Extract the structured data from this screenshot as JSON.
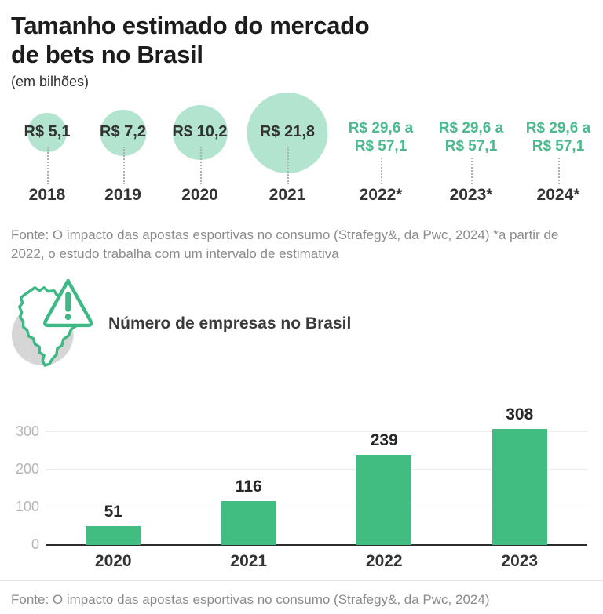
{
  "header": {
    "title_line1": "Tamanho estimado do mercado",
    "title_line2": "de bets no Brasil",
    "subtitle": "(em bilhões)"
  },
  "bubble_chart": {
    "type": "bubble",
    "unit_note": "(em bilhões)",
    "bubble_color": "#b2e4d0",
    "range_text_color": "#4cba8e",
    "items": [
      {
        "year": "2018",
        "label": "R$ 5,1",
        "value": 5.1
      },
      {
        "year": "2019",
        "label": "R$ 7,2",
        "value": 7.2
      },
      {
        "year": "2020",
        "label": "R$ 10,2",
        "value": 10.2
      },
      {
        "year": "2021",
        "label": "R$ 21,8",
        "value": 21.8
      },
      {
        "year": "2022*",
        "label_lines": [
          "R$ 29,6 a",
          "R$ 57,1"
        ],
        "range": [
          29.6,
          57.1
        ]
      },
      {
        "year": "2023*",
        "label_lines": [
          "R$ 29,6 a",
          "R$ 57,1"
        ],
        "range": [
          29.6,
          57.1
        ]
      },
      {
        "year": "2024*",
        "label_lines": [
          "R$ 29,6 a",
          "R$ 57,1"
        ],
        "range": [
          29.6,
          57.1
        ]
      }
    ]
  },
  "source_top": "Fonte: O impacto das apostas esportivas no consumo (Strafegy&, da Pwc, 2024) *a partir de 2022, o estudo trabalha com um intervalo de estimativa",
  "section_companies": {
    "title": "Número de empresas no Brasil",
    "icon": "brazil-map-warning-icon"
  },
  "chart_data": {
    "type": "bar",
    "title": "Número de empresas no Brasil",
    "categories": [
      "2020",
      "2021",
      "2022",
      "2023"
    ],
    "values": [
      51,
      116,
      239,
      308
    ],
    "yticks": [
      0,
      100,
      200,
      300
    ],
    "ylim": [
      0,
      330
    ],
    "grid": true,
    "legend": false,
    "bar_color": "#41bd82",
    "xlabel": "",
    "ylabel": ""
  },
  "source_bottom": "Fonte: O impacto das apostas esportivas no consumo (Strafegy&, da Pwc, 2024)",
  "colors": {
    "accent_green": "#3cb984",
    "bubble_mint": "#b2e4d0",
    "bar_green": "#41bd82",
    "range_green": "#4cba8e",
    "gray_blob": "#d6d6d6"
  }
}
